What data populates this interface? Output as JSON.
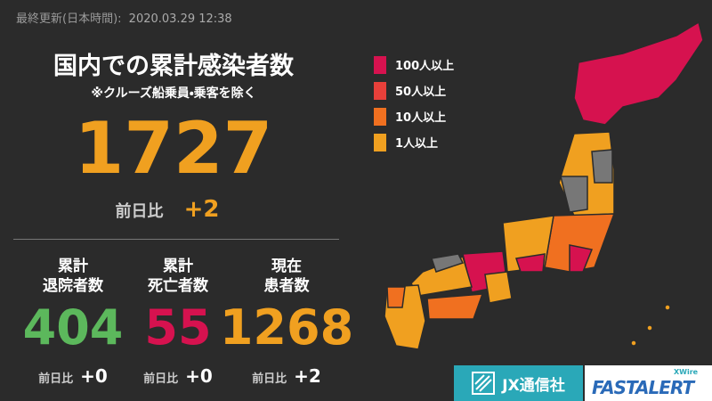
{
  "header": {
    "updated_label": "最終更新(日本時間):",
    "updated": "2020.03.29 12:38"
  },
  "main": {
    "title": "国内での累計感染者数",
    "note": "※クルーズ船乗員・乗客を除く",
    "total": "1727",
    "diff_label": "前日比",
    "diff": "+2"
  },
  "stats": [
    {
      "label_lines": [
        "累計",
        "退院者数"
      ],
      "value": "404",
      "color": "#5cb85c",
      "diff_label": "前日比",
      "diff": "+0"
    },
    {
      "label_lines": [
        "累計",
        "死亡者数"
      ],
      "value": "55",
      "color": "#d6124f",
      "diff_label": "前日比",
      "diff": "+0"
    },
    {
      "label_lines": [
        "現在",
        "患者数"
      ],
      "value": "1268",
      "color": "#f0a020",
      "diff_label": "前日比",
      "diff": "+2"
    }
  ],
  "legend": [
    {
      "label": "100人以上",
      "color": "#d6124f"
    },
    {
      "label": "50人以上",
      "color": "#e8403a"
    },
    {
      "label": "10人以上",
      "color": "#f07020"
    },
    {
      "label": "1人以上",
      "color": "#f0a020"
    }
  ],
  "logos": {
    "jx": "JX通信社",
    "xwire": "XWire",
    "fast": "FASTALERT"
  }
}
